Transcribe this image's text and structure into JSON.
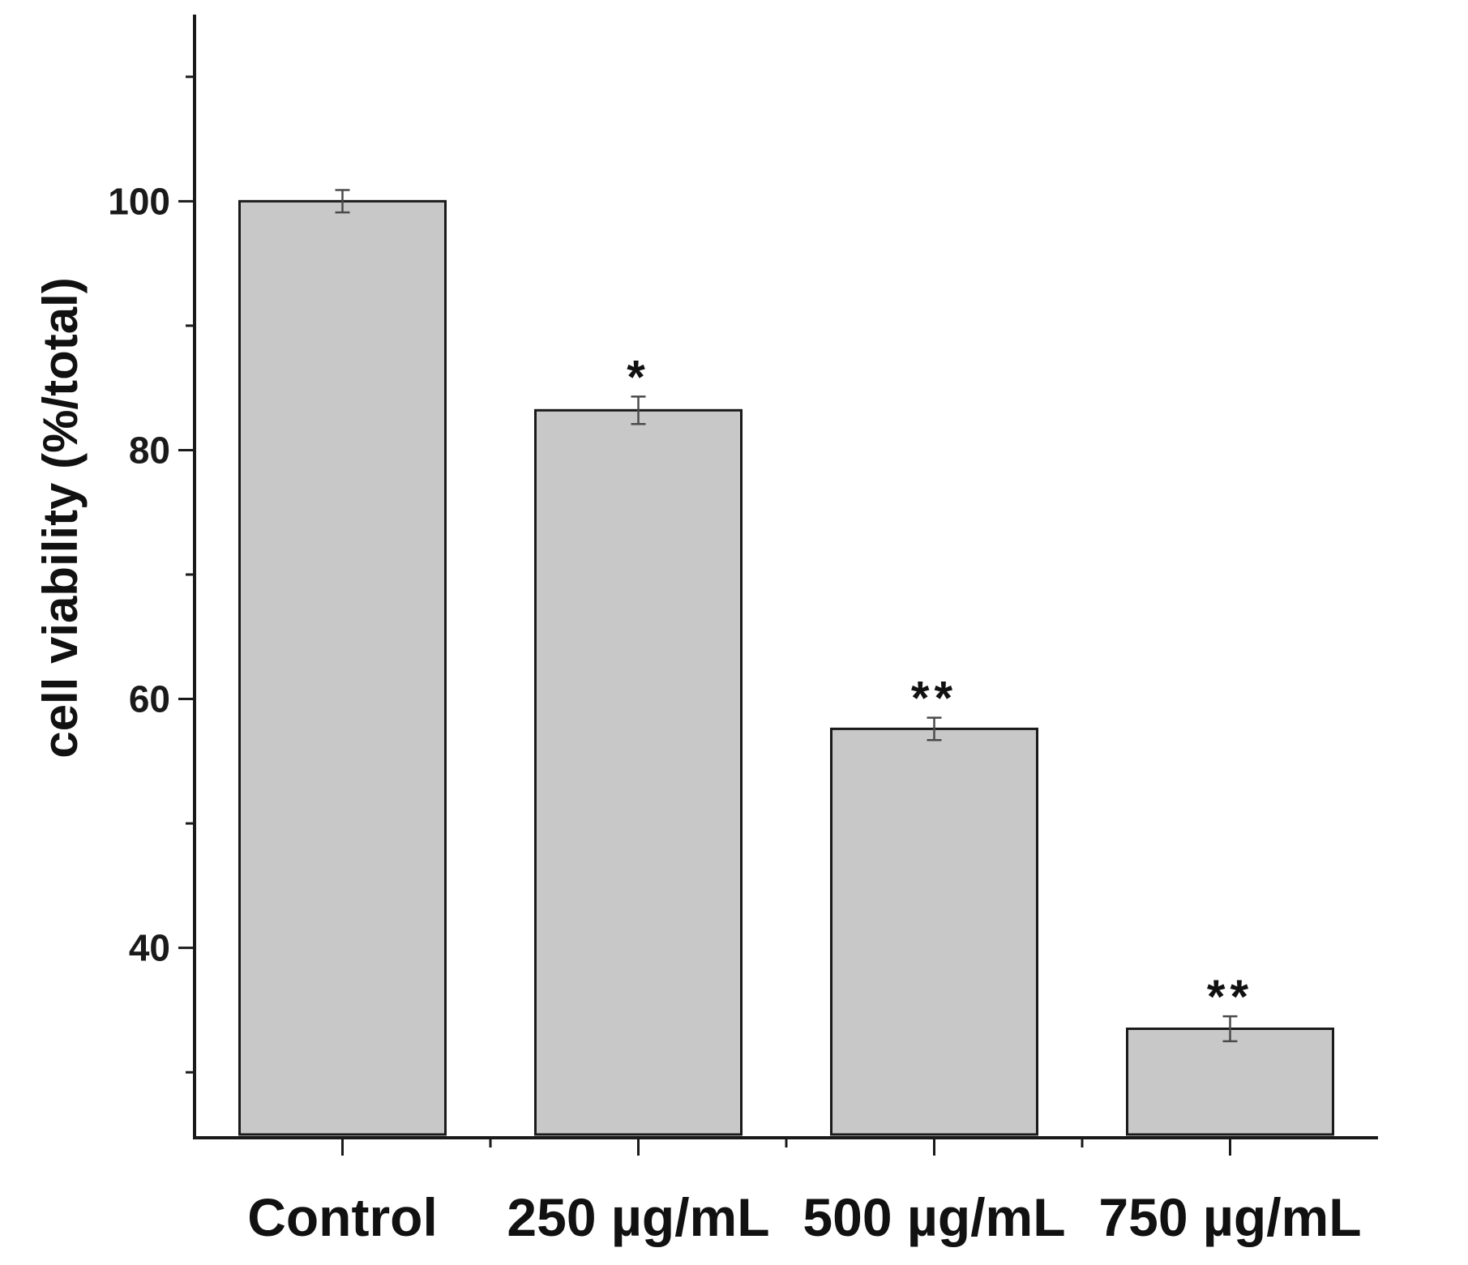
{
  "chart_data": {
    "type": "bar",
    "title": "",
    "xlabel": "",
    "ylabel": "cell viability (%/total)",
    "categories": [
      "Control",
      "250 µg/mL",
      "500 µg/mL",
      "750 µg/mL"
    ],
    "values": [
      100,
      83.2,
      57.6,
      33.5
    ],
    "errors": [
      0.9,
      1.1,
      0.9,
      1.0
    ],
    "significance": [
      "",
      "*",
      "**",
      "**"
    ],
    "ylim": [
      25,
      115
    ],
    "yticks_major": [
      40,
      60,
      80,
      100
    ],
    "yticks_minor": [
      30,
      50,
      70,
      90,
      110
    ],
    "grid": false,
    "colors": {
      "bar_fill": "#c8c8c8",
      "bar_stroke": "#1a1a1a",
      "axis": "#1a1a1a",
      "error_bar": "#4a4a4a"
    }
  }
}
